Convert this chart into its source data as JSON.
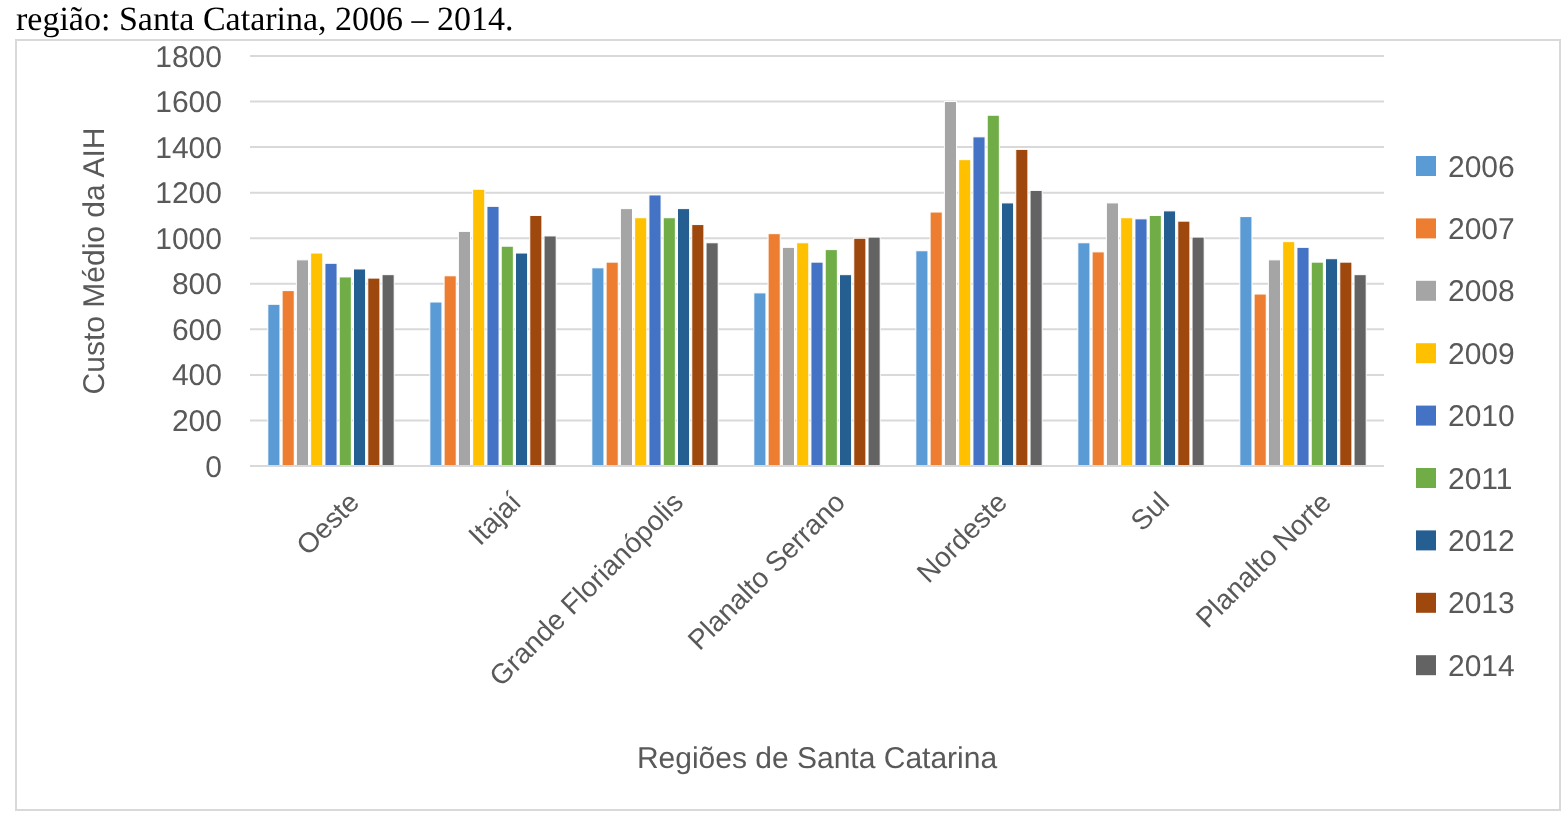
{
  "chart_data": {
    "type": "bar",
    "annotations": [
      "região: Santa Catarina, 2006 – 2014."
    ],
    "xlabel": "Regiões de Santa Catarina",
    "ylabel": "Custo Médio da AIH",
    "categories": [
      "Oeste",
      "Itajaí",
      "Grande Florianópolis",
      "Planalto Serrano",
      "Nordeste",
      "Sul",
      "Planalto Norte"
    ],
    "series": [
      {
        "name": "2006",
        "color": "#5b9bd5",
        "values": [
          710,
          720,
          870,
          760,
          945,
          980,
          1095
        ]
      },
      {
        "name": "2007",
        "color": "#ed7d31",
        "values": [
          770,
          835,
          895,
          1020,
          1115,
          940,
          755
        ]
      },
      {
        "name": "2008",
        "color": "#a5a5a5",
        "values": [
          905,
          1030,
          1130,
          960,
          1600,
          1155,
          905
        ]
      },
      {
        "name": "2009",
        "color": "#ffc000",
        "values": [
          935,
          1215,
          1090,
          980,
          1345,
          1090,
          985
        ]
      },
      {
        "name": "2010",
        "color": "#4472c4",
        "values": [
          890,
          1140,
          1190,
          895,
          1445,
          1085,
          960
        ]
      },
      {
        "name": "2011",
        "color": "#70ad47",
        "values": [
          830,
          965,
          1090,
          950,
          1540,
          1100,
          895
        ]
      },
      {
        "name": "2012",
        "color": "#255e91",
        "values": [
          865,
          935,
          1130,
          840,
          1155,
          1120,
          910
        ]
      },
      {
        "name": "2013",
        "color": "#9e480e",
        "values": [
          825,
          1100,
          1060,
          1000,
          1390,
          1075,
          895
        ]
      },
      {
        "name": "2014",
        "color": "#636363",
        "values": [
          840,
          1010,
          980,
          1005,
          1210,
          1005,
          840
        ]
      }
    ],
    "ylim": [
      0,
      1800
    ],
    "yticks": [
      0,
      200,
      400,
      600,
      800,
      1000,
      1200,
      1400,
      1600,
      1800
    ],
    "grid": "y",
    "legend": "right"
  }
}
